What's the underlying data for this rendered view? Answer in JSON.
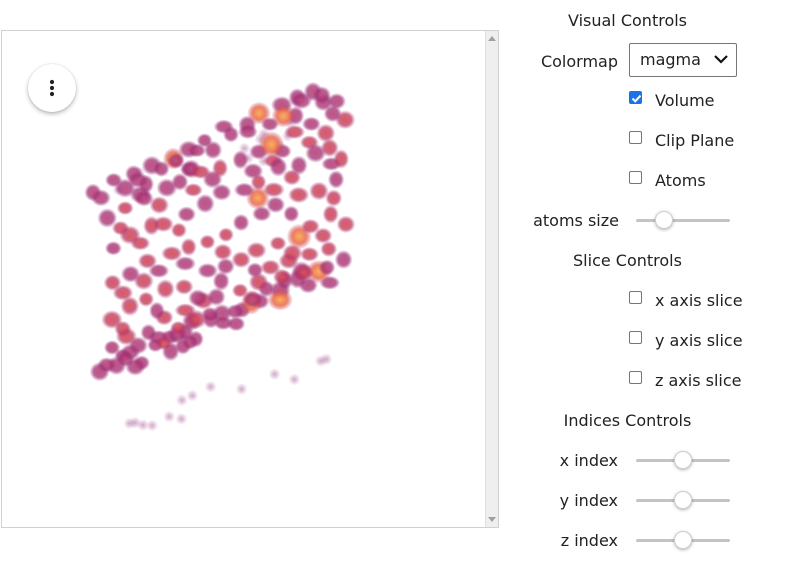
{
  "viewer": {
    "menu_icon": "vertical-dots-icon",
    "colors": {
      "low": "#a0307a",
      "mid": "#c23a5c",
      "high": "#f2923f"
    }
  },
  "visual_controls": {
    "title": "Visual Controls",
    "colormap_label": "Colormap",
    "colormap_value": "magma",
    "volume_label": "Volume",
    "volume_checked": true,
    "clip_plane_label": "Clip Plane",
    "clip_plane_checked": false,
    "atoms_label": "Atoms",
    "atoms_checked": false,
    "atoms_size_label": "atoms size",
    "atoms_size_value": 0.3
  },
  "slice_controls": {
    "title": "Slice Controls",
    "x_label": "x axis slice",
    "x_checked": false,
    "y_label": "y axis slice",
    "y_checked": false,
    "z_label": "z axis slice",
    "z_checked": false
  },
  "indices_controls": {
    "title": "Indices Controls",
    "x_label": "x index",
    "x_value": 0.5,
    "y_label": "y index",
    "y_value": 0.5,
    "z_label": "z index",
    "z_value": 0.5
  },
  "accent_color": "#1a73e8"
}
